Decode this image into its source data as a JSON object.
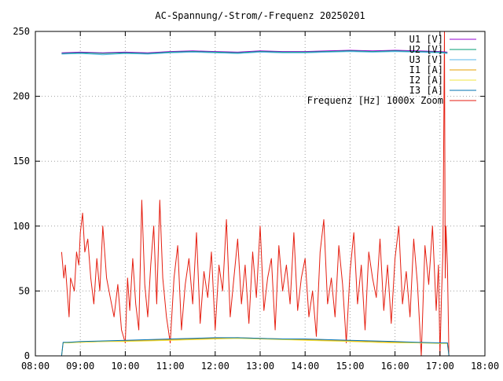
{
  "chart_data": {
    "type": "line",
    "title": "AC-Spannung/-Strom/-Frequenz 20250201",
    "xlabel": "",
    "ylabel": "",
    "x_unit": "time of day",
    "xlim": [
      "08:00",
      "18:00"
    ],
    "ylim": [
      0,
      250
    ],
    "x_ticks": [
      "08:00",
      "09:00",
      "10:00",
      "11:00",
      "12:00",
      "13:00",
      "14:00",
      "15:00",
      "16:00",
      "17:00",
      "18:00"
    ],
    "y_ticks": [
      "0",
      "50",
      "100",
      "150",
      "200",
      "250"
    ],
    "grid": true,
    "legend_position": "top-right",
    "series": [
      {
        "name": "U1 [V]",
        "color": "#9400d3",
        "x": [
          "08:35",
          "09:00",
          "09:30",
          "10:00",
          "10:30",
          "11:00",
          "11:30",
          "12:00",
          "12:30",
          "13:00",
          "13:30",
          "14:00",
          "14:30",
          "15:00",
          "15:30",
          "16:00",
          "16:30",
          "17:00",
          "17:10"
        ],
        "values": [
          233.5,
          234,
          233.5,
          234,
          233.5,
          234.5,
          235,
          234.5,
          234,
          235,
          234.5,
          234.5,
          235,
          235.5,
          235,
          235.5,
          235,
          234.5,
          234
        ]
      },
      {
        "name": "U2 [V]",
        "color": "#009e73",
        "x": [
          "08:35",
          "09:00",
          "09:30",
          "10:00",
          "10:30",
          "11:00",
          "11:30",
          "12:00",
          "12:30",
          "13:00",
          "13:30",
          "14:00",
          "14:30",
          "15:00",
          "15:30",
          "16:00",
          "16:30",
          "17:00",
          "17:10"
        ],
        "values": [
          233,
          233.5,
          233,
          233.5,
          233,
          234,
          234.5,
          234,
          233.5,
          234.5,
          234,
          234,
          234.5,
          235,
          234.5,
          235,
          234.5,
          234,
          233.5
        ]
      },
      {
        "name": "U3 [V]",
        "color": "#56b4e9",
        "x": [
          "08:35",
          "09:00",
          "09:30",
          "10:00",
          "10:30",
          "11:00",
          "11:30",
          "12:00",
          "12:30",
          "13:00",
          "13:30",
          "14:00",
          "14:30",
          "15:00",
          "15:30",
          "16:00",
          "16:30",
          "17:00",
          "17:10"
        ],
        "values": [
          232.5,
          233,
          232,
          233,
          232.5,
          233.5,
          234,
          233.5,
          233,
          234,
          233.5,
          233.5,
          234,
          234.5,
          234,
          234.5,
          234,
          233.5,
          233
        ]
      },
      {
        "name": "I1 [A]",
        "color": "#e69f00",
        "x": [
          "08:35",
          "08:37",
          "08:45",
          "09:00",
          "09:30",
          "10:00",
          "10:30",
          "11:00",
          "11:30",
          "12:00",
          "12:30",
          "13:00",
          "13:30",
          "14:00",
          "14:30",
          "15:00",
          "15:30",
          "16:00",
          "16:30",
          "17:00",
          "17:10",
          "17:12"
        ],
        "values": [
          0,
          10,
          10.5,
          10.5,
          11,
          11.5,
          12,
          12.5,
          13,
          13.5,
          14,
          13.5,
          13,
          12.5,
          12,
          11.5,
          11,
          10.5,
          10,
          10,
          10,
          0
        ]
      },
      {
        "name": "I2 [A]",
        "color": "#f0e442",
        "x": [
          "08:35",
          "08:37",
          "08:45",
          "09:00",
          "09:30",
          "10:00",
          "10:30",
          "11:00",
          "11:30",
          "12:00",
          "12:30",
          "13:00",
          "13:30",
          "14:00",
          "14:30",
          "15:00",
          "15:30",
          "16:00",
          "16:30",
          "17:00",
          "17:10",
          "17:12"
        ],
        "values": [
          0,
          10,
          10,
          10.5,
          11,
          11,
          11.5,
          12,
          12.5,
          13,
          13.5,
          13,
          12.5,
          12,
          11.5,
          11,
          10.5,
          10,
          10,
          9.5,
          9.5,
          0
        ]
      },
      {
        "name": "I3 [A]",
        "color": "#0072b2",
        "x": [
          "08:35",
          "08:37",
          "08:45",
          "09:00",
          "09:30",
          "10:00",
          "10:30",
          "11:00",
          "11:30",
          "12:00",
          "12:30",
          "13:00",
          "13:30",
          "14:00",
          "14:30",
          "15:00",
          "15:30",
          "16:00",
          "16:30",
          "17:00",
          "17:10",
          "17:12"
        ],
        "values": [
          0,
          10.5,
          10.5,
          11,
          11.5,
          12,
          12.5,
          13,
          13.5,
          14,
          14,
          13.5,
          13,
          13,
          12.5,
          12,
          11.5,
          11,
          10.5,
          10,
          10,
          0
        ]
      },
      {
        "name": "Frequenz [Hz] 1000x Zoom",
        "color": "#e51e10",
        "x": [
          "08:35",
          "08:38",
          "08:40",
          "08:45",
          "08:47",
          "08:52",
          "08:55",
          "08:58",
          "09:00",
          "09:03",
          "09:06",
          "09:10",
          "09:14",
          "09:18",
          "09:22",
          "09:26",
          "09:30",
          "09:35",
          "09:40",
          "09:45",
          "09:50",
          "09:55",
          "10:00",
          "10:03",
          "10:06",
          "10:10",
          "10:14",
          "10:18",
          "10:22",
          "10:26",
          "10:30",
          "10:34",
          "10:38",
          "10:42",
          "10:46",
          "10:50",
          "10:55",
          "11:00",
          "11:05",
          "11:10",
          "11:15",
          "11:20",
          "11:25",
          "11:30",
          "11:35",
          "11:40",
          "11:45",
          "11:50",
          "11:55",
          "12:00",
          "12:05",
          "12:10",
          "12:15",
          "12:20",
          "12:25",
          "12:30",
          "12:35",
          "12:40",
          "12:45",
          "12:50",
          "12:55",
          "13:00",
          "13:05",
          "13:10",
          "13:15",
          "13:20",
          "13:25",
          "13:30",
          "13:35",
          "13:40",
          "13:45",
          "13:50",
          "13:55",
          "14:00",
          "14:05",
          "14:10",
          "14:15",
          "14:20",
          "14:25",
          "14:30",
          "14:35",
          "14:40",
          "14:45",
          "14:50",
          "14:55",
          "15:00",
          "15:05",
          "15:10",
          "15:15",
          "15:20",
          "15:25",
          "15:30",
          "15:35",
          "15:40",
          "15:45",
          "15:50",
          "15:55",
          "16:00",
          "16:05",
          "16:10",
          "16:15",
          "16:20",
          "16:25",
          "16:30",
          "16:35",
          "16:40",
          "16:45",
          "16:50",
          "16:55",
          "16:58",
          "17:00",
          "17:02",
          "17:04",
          "17:06",
          "17:07",
          "17:08",
          "17:10",
          "17:12"
        ],
        "values": [
          80,
          60,
          70,
          30,
          60,
          50,
          80,
          70,
          95,
          110,
          80,
          90,
          60,
          40,
          75,
          50,
          100,
          60,
          45,
          30,
          55,
          20,
          10,
          60,
          35,
          75,
          40,
          20,
          120,
          55,
          30,
          70,
          100,
          40,
          120,
          60,
          30,
          10,
          60,
          85,
          20,
          55,
          75,
          40,
          95,
          25,
          65,
          45,
          80,
          20,
          70,
          50,
          105,
          30,
          60,
          90,
          40,
          70,
          25,
          80,
          45,
          100,
          35,
          60,
          75,
          20,
          85,
          50,
          70,
          40,
          95,
          35,
          60,
          75,
          30,
          50,
          15,
          80,
          105,
          40,
          60,
          30,
          85,
          55,
          10,
          65,
          95,
          40,
          70,
          20,
          80,
          60,
          45,
          90,
          35,
          70,
          25,
          75,
          100,
          40,
          65,
          30,
          90,
          55,
          0,
          85,
          55,
          100,
          35,
          70,
          0,
          45,
          80,
          250,
          60,
          100,
          70,
          0
        ]
      }
    ]
  }
}
